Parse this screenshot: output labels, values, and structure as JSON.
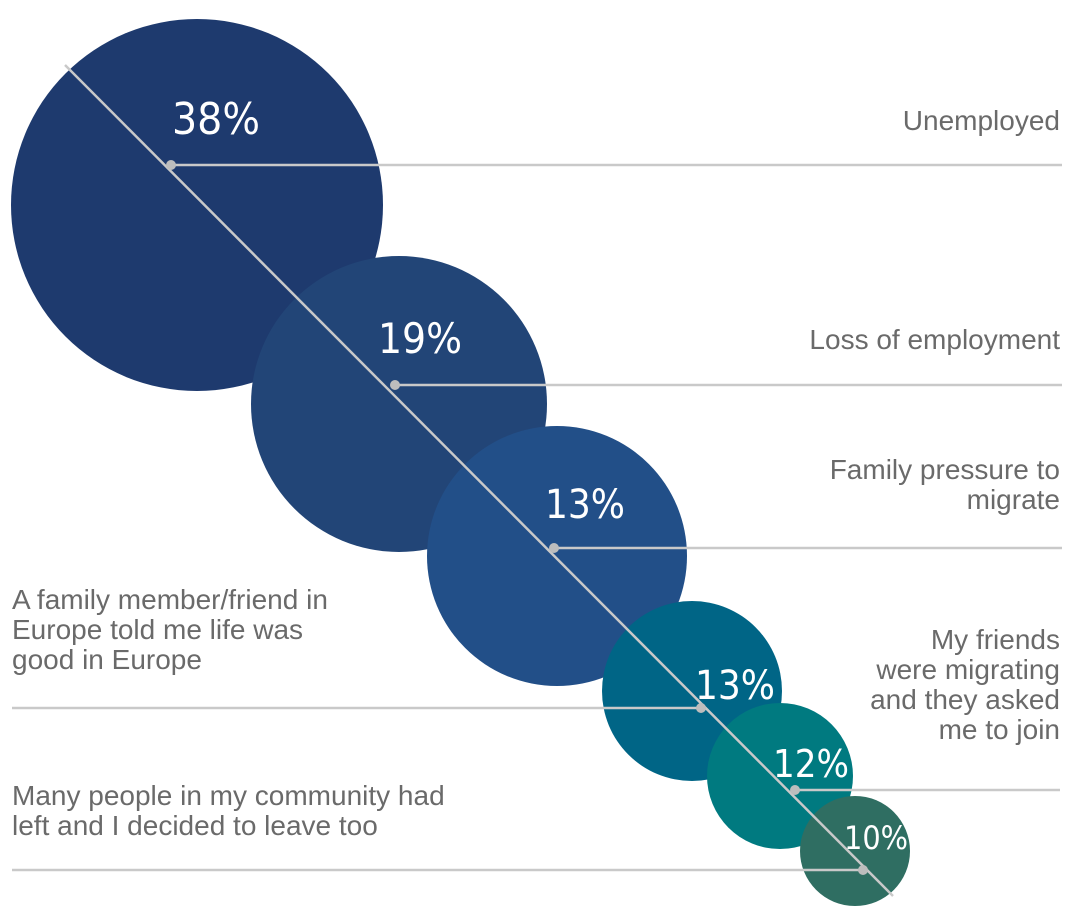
{
  "chart_data": {
    "type": "bubble",
    "title": "",
    "series": [
      {
        "label": [
          "Unemployed"
        ],
        "value": 38,
        "display": "38%",
        "color": "#1e3a6e"
      },
      {
        "label": [
          "Loss of employment"
        ],
        "value": 19,
        "display": "19%",
        "color": "#224577"
      },
      {
        "label": [
          "Family pressure to",
          "migrate"
        ],
        "value": 13,
        "display": "13%",
        "color": "#224f88"
      },
      {
        "label": [
          "A family member/friend in",
          "Europe told me life was",
          "good in Europe"
        ],
        "value": 13,
        "display": "13%",
        "color": "#006586"
      },
      {
        "label": [
          "My friends",
          "were migrating",
          "and they asked",
          "me to join"
        ],
        "value": 12,
        "display": "12%",
        "color": "#007a80"
      },
      {
        "label": [
          "Many people in my community had",
          "left and I decided to leave too"
        ],
        "value": 10,
        "display": "10%",
        "color": "#2f6e62"
      }
    ],
    "legend": "none",
    "grid": false
  }
}
